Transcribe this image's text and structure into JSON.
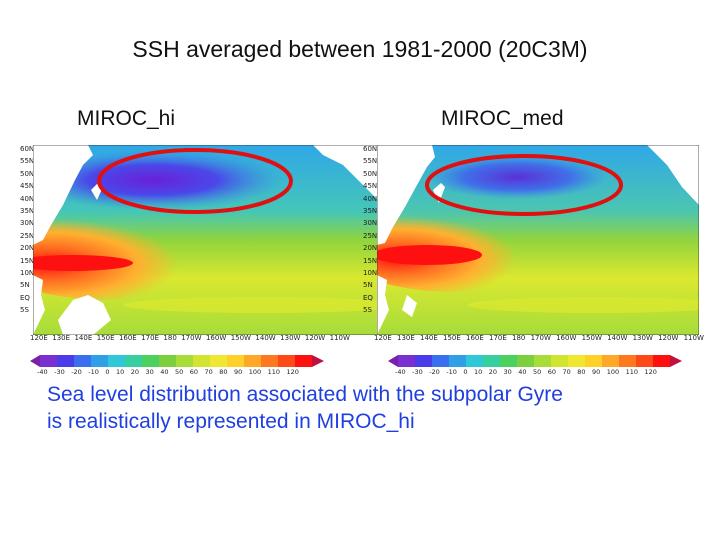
{
  "title": "SSH averaged between 1981-2000 (20C3M)",
  "panels": [
    {
      "label": "MIROC_hi"
    },
    {
      "label": "MIROC_med"
    }
  ],
  "lat_ticks": [
    "60N",
    "55N",
    "50N",
    "45N",
    "40N",
    "35N",
    "30N",
    "25N",
    "20N",
    "15N",
    "10N",
    "5N",
    "EQ",
    "5S"
  ],
  "lon_ticks": [
    "120E",
    "130E",
    "140E",
    "150E",
    "160E",
    "170E",
    "180",
    "170W",
    "160W",
    "150W",
    "140W",
    "130W",
    "120W",
    "110W"
  ],
  "colorbar_ticks": [
    "-40",
    "-30",
    "-20",
    "-10",
    "0",
    "10",
    "20",
    "30",
    "40",
    "50",
    "60",
    "70",
    "80",
    "90",
    "100",
    "110",
    "120"
  ],
  "caption": {
    "line1": "Sea level distribution associated with the subpolar Gyre",
    "line2": "is realistically represented in MIROC_hi"
  },
  "colors": {
    "caption": "#1f3fe0",
    "ellipse": "#e01010",
    "ocean_mid": "#8fd43c",
    "subpolar": "#5a2ce0",
    "subtropical": "#ff2010",
    "land": "#ffffff"
  }
}
